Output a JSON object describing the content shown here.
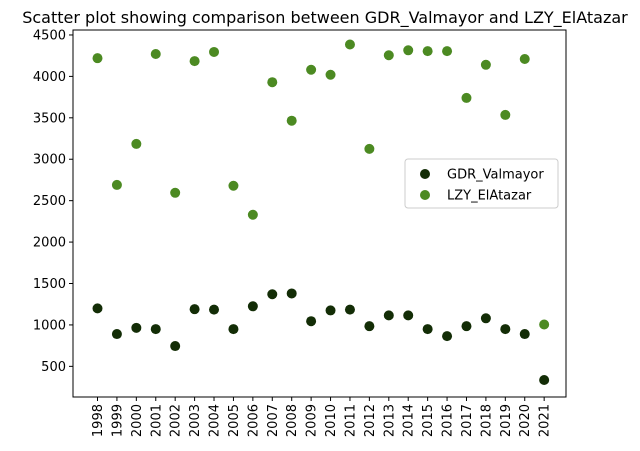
{
  "chart_data": {
    "type": "scatter",
    "title": "Scatter plot showing comparison between GDR_Valmayor and LZY_ElAtazar",
    "xlabel": "",
    "ylabel": "",
    "categories": [
      "1998",
      "1999",
      "2000",
      "2001",
      "2002",
      "2003",
      "2004",
      "2005",
      "2006",
      "2007",
      "2008",
      "2009",
      "2010",
      "2011",
      "2012",
      "2013",
      "2014",
      "2015",
      "2016",
      "2017",
      "2018",
      "2019",
      "2020",
      "2021"
    ],
    "yticks": [
      500,
      1000,
      1500,
      2000,
      2500,
      3000,
      3500,
      4000,
      4500
    ],
    "ylim": [
      130,
      4560
    ],
    "grid": false,
    "legend_position": "center-right",
    "series": [
      {
        "name": "GDR_Valmayor",
        "color": "#132d06",
        "values": [
          1200,
          890,
          965,
          950,
          745,
          1190,
          1185,
          950,
          1225,
          1370,
          1380,
          1045,
          1175,
          1185,
          985,
          1115,
          1115,
          950,
          865,
          985,
          1080,
          950,
          890,
          335
        ]
      },
      {
        "name": "LZY_ElAtazar",
        "color": "#4c8a22",
        "values": [
          4220,
          2690,
          3185,
          4270,
          2595,
          4185,
          4295,
          2680,
          2330,
          3930,
          3465,
          4080,
          4020,
          4385,
          3125,
          4255,
          4315,
          4305,
          4305,
          3740,
          4140,
          3535,
          4210,
          1005
        ]
      }
    ]
  }
}
